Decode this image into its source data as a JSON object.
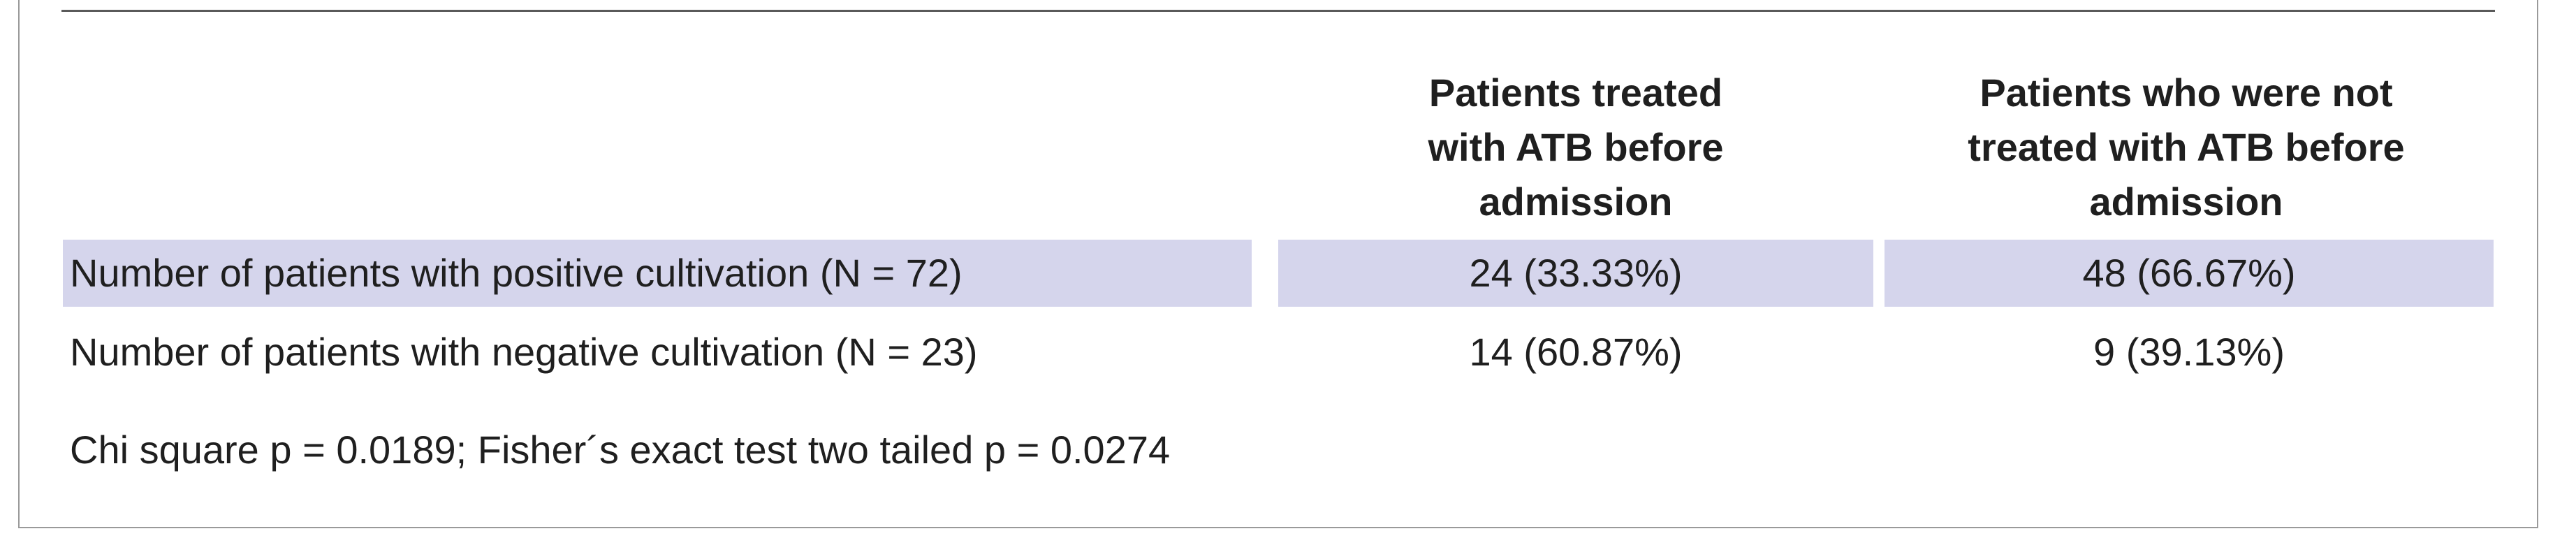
{
  "table": {
    "columns": [
      "",
      "Patients treated\nwith ATB before\nadmission",
      "Patients who were not\ntreated with ATB before\nadmission"
    ],
    "rows": [
      {
        "label": "Number of patients with positive cultivation (N = 72)",
        "treated": "24 (33.33%)",
        "not_treated": "48 (66.67%)",
        "highlighted": true
      },
      {
        "label": "Number of patients with negative cultivation (N = 23)",
        "treated": "14 (60.87%)",
        "not_treated": "9 (39.13%)",
        "highlighted": false
      }
    ],
    "footnote": "Chi square p = 0.0189; Fisher´s exact test two tailed p = 0.0274"
  },
  "colors": {
    "row_highlight": "#d5d5ec",
    "rule": "#5a5a5a",
    "frame": "#9a9a9a",
    "text": "#1f1f1f"
  }
}
